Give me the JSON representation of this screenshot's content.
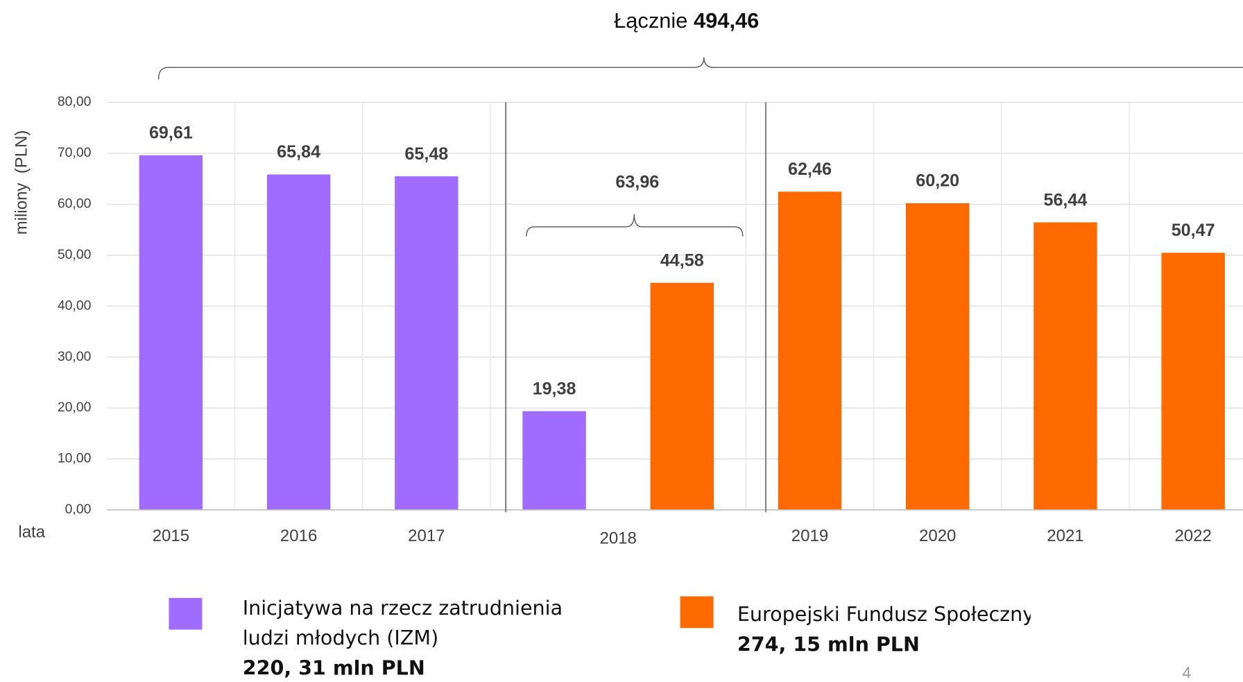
{
  "chart_data": {
    "type": "bar",
    "y_label": "miliony  (PLN)",
    "x_label": "lata",
    "total_text": "Łącznie",
    "total": {
      "value": 494.46,
      "label": "494,46"
    },
    "group_total": {
      "value": 63.96,
      "label": "63,96"
    },
    "categories": [
      "2015",
      "2016",
      "2017",
      "2018",
      "2019",
      "2020",
      "2021",
      "2022"
    ],
    "series": [
      {
        "name": "Inicjatywa na rzecz zatrudnienia ludzi młodych (IZM)",
        "note": "220, 31 mln PLN",
        "color": "#a06cff",
        "values": [
          69.61,
          65.84,
          65.48,
          19.38,
          null,
          null,
          null,
          null
        ],
        "value_labels": [
          "69,61",
          "65,84",
          "65,48",
          "19,38",
          null,
          null,
          null,
          null
        ]
      },
      {
        "name": "Europejski Fundusz Społeczny",
        "note": "274, 15 mln PLN",
        "color": "#ff6a00",
        "values": [
          null,
          null,
          null,
          44.58,
          62.46,
          60.2,
          56.44,
          50.47
        ],
        "value_labels": [
          null,
          null,
          null,
          "44,58",
          "62,46",
          "60,20",
          "56,44",
          "50,47"
        ]
      }
    ],
    "ylim": [
      0,
      80
    ],
    "yticks": [
      {
        "value": 0,
        "label": "0,00"
      },
      {
        "value": 10,
        "label": "10,00"
      },
      {
        "value": 20,
        "label": "20,00"
      },
      {
        "value": 30,
        "label": "30,00"
      },
      {
        "value": 40,
        "label": "40,00"
      },
      {
        "value": 50,
        "label": "50,00"
      },
      {
        "value": 60,
        "label": "60,00"
      },
      {
        "value": 70,
        "label": "70,00"
      },
      {
        "value": 80,
        "label": "80,00"
      }
    ],
    "grid": true,
    "page_number": "4"
  }
}
